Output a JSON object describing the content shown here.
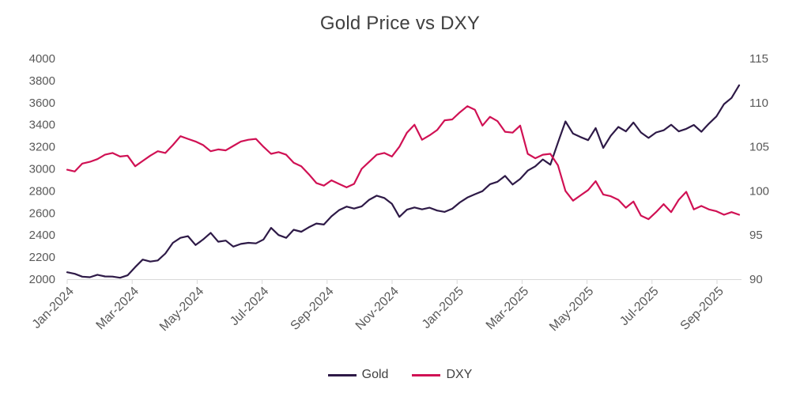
{
  "chart_data": {
    "type": "line",
    "title": "Gold Price vs DXY",
    "grid": false,
    "legend_position": "bottom",
    "background": "#ffffff",
    "axis_line_color": "#d9d9d9",
    "axis_label_color": "#595959",
    "title_color": "#404040",
    "x_tick_labels": [
      "Jan-2024",
      "Mar-2024",
      "May-2024",
      "Jul-2024",
      "Sep-2024",
      "Nov-2024",
      "Jan-2025",
      "Mar-2025",
      "May-2025",
      "Jul-2025",
      "Sep-2025"
    ],
    "left_axis": {
      "min": 2000,
      "max": 4000,
      "ticks": [
        2000,
        2200,
        2400,
        2600,
        2800,
        3000,
        3200,
        3400,
        3600,
        3800,
        4000
      ]
    },
    "right_axis": {
      "min": 90,
      "max": 115,
      "ticks": [
        90,
        95,
        100,
        105,
        110,
        115
      ]
    },
    "series": [
      {
        "name": "Gold",
        "axis": "left",
        "color": "#2E1A47",
        "values": [
          2063,
          2049,
          2023,
          2018,
          2040,
          2025,
          2024,
          2013,
          2035,
          2110,
          2178,
          2160,
          2170,
          2233,
          2330,
          2375,
          2390,
          2310,
          2360,
          2420,
          2340,
          2350,
          2295,
          2320,
          2330,
          2325,
          2360,
          2465,
          2400,
          2375,
          2448,
          2430,
          2470,
          2505,
          2495,
          2570,
          2625,
          2658,
          2640,
          2660,
          2720,
          2757,
          2736,
          2684,
          2565,
          2630,
          2650,
          2633,
          2648,
          2622,
          2610,
          2639,
          2695,
          2740,
          2770,
          2798,
          2861,
          2883,
          2936,
          2858,
          2909,
          2984,
          3023,
          3085,
          3038,
          3238,
          3430,
          3320,
          3288,
          3260,
          3370,
          3190,
          3300,
          3380,
          3340,
          3420,
          3330,
          3280,
          3330,
          3350,
          3400,
          3340,
          3363,
          3398,
          3336,
          3410,
          3475,
          3587,
          3643,
          3758
        ]
      },
      {
        "name": "DXY",
        "axis": "right",
        "color": "#D01154",
        "values": [
          102.4,
          102.2,
          103.1,
          103.3,
          103.6,
          104.1,
          104.3,
          103.9,
          104.0,
          102.8,
          103.4,
          104.0,
          104.5,
          104.3,
          105.2,
          106.2,
          105.9,
          105.6,
          105.2,
          104.5,
          104.7,
          104.6,
          105.1,
          105.6,
          105.8,
          105.9,
          105.0,
          104.2,
          104.4,
          104.1,
          103.2,
          102.8,
          101.9,
          100.9,
          100.6,
          101.2,
          100.8,
          100.4,
          100.8,
          102.5,
          103.3,
          104.1,
          104.3,
          103.9,
          105.0,
          106.6,
          107.5,
          105.8,
          106.3,
          106.9,
          108.0,
          108.1,
          108.9,
          109.6,
          109.2,
          107.4,
          108.4,
          107.9,
          106.7,
          106.6,
          107.4,
          104.2,
          103.7,
          104.1,
          104.2,
          102.9,
          100.0,
          98.9,
          99.5,
          100.1,
          101.1,
          99.6,
          99.4,
          99.0,
          98.1,
          98.8,
          97.2,
          96.8,
          97.6,
          98.5,
          97.6,
          99.0,
          99.9,
          97.9,
          98.3,
          97.9,
          97.7,
          97.3,
          97.6,
          97.3
        ]
      }
    ]
  }
}
